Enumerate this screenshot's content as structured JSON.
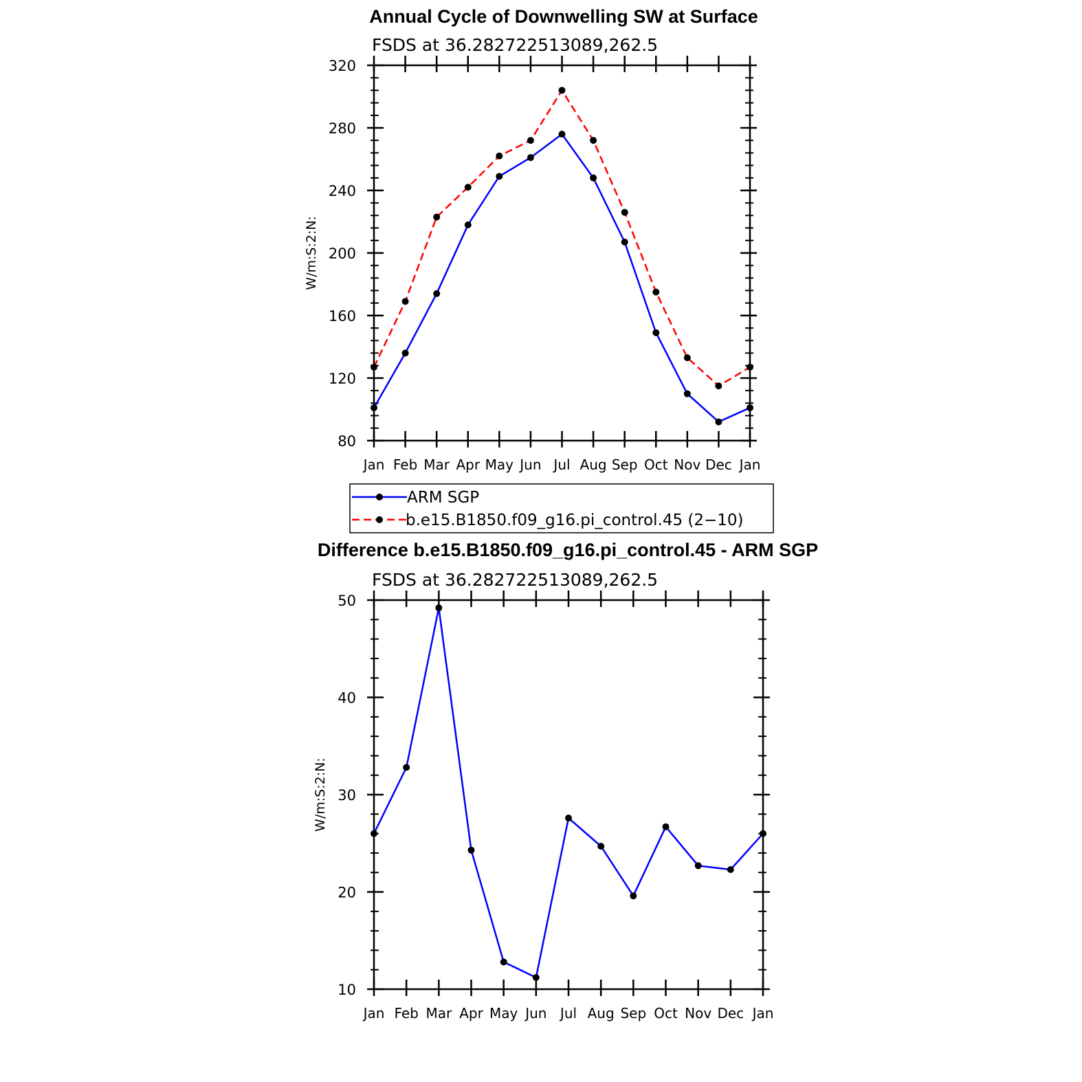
{
  "months": [
    "Jan",
    "Feb",
    "Mar",
    "Apr",
    "May",
    "Jun",
    "Jul",
    "Aug",
    "Sep",
    "Oct",
    "Nov",
    "Dec",
    "Jan"
  ],
  "chart_data": [
    {
      "type": "line",
      "title": "Annual Cycle of Downwelling SW at Surface",
      "subtitle": "FSDS at 36.282722513089,262.5",
      "ylabel": "W/m:S:2:N:",
      "ylim": [
        80,
        320
      ],
      "yticks": [
        80,
        120,
        160,
        200,
        240,
        280,
        320
      ],
      "categories": [
        "Jan",
        "Feb",
        "Mar",
        "Apr",
        "May",
        "Jun",
        "Jul",
        "Aug",
        "Sep",
        "Oct",
        "Nov",
        "Dec",
        "Jan"
      ],
      "series": [
        {
          "name": "ARM SGP",
          "color": "#0000ff",
          "dash": "solid",
          "values": [
            101,
            136,
            174,
            218,
            249,
            261,
            276,
            248,
            207,
            149,
            110,
            92,
            101
          ]
        },
        {
          "name": "b.e15.B1850.f09_g16.pi_control.45 (2−10)",
          "color": "#ff0000",
          "dash": "dashed",
          "values": [
            127,
            169,
            223,
            242,
            262,
            272,
            304,
            272,
            226,
            175,
            133,
            115,
            127
          ]
        }
      ],
      "legend_position": "below"
    },
    {
      "type": "line",
      "title": "Difference b.e15.B1850.f09_g16.pi_control.45 - ARM SGP",
      "subtitle": "FSDS at 36.282722513089,262.5",
      "ylabel": "W/m:S:2:N:",
      "ylim": [
        10,
        50
      ],
      "yticks": [
        10,
        20,
        30,
        40,
        50
      ],
      "categories": [
        "Jan",
        "Feb",
        "Mar",
        "Apr",
        "May",
        "Jun",
        "Jul",
        "Aug",
        "Sep",
        "Oct",
        "Nov",
        "Dec",
        "Jan"
      ],
      "series": [
        {
          "color": "#0000ff",
          "dash": "solid",
          "values": [
            26.0,
            32.8,
            49.2,
            24.3,
            12.8,
            11.2,
            27.6,
            24.7,
            19.6,
            26.7,
            22.7,
            22.3,
            26.0
          ]
        }
      ]
    }
  ]
}
